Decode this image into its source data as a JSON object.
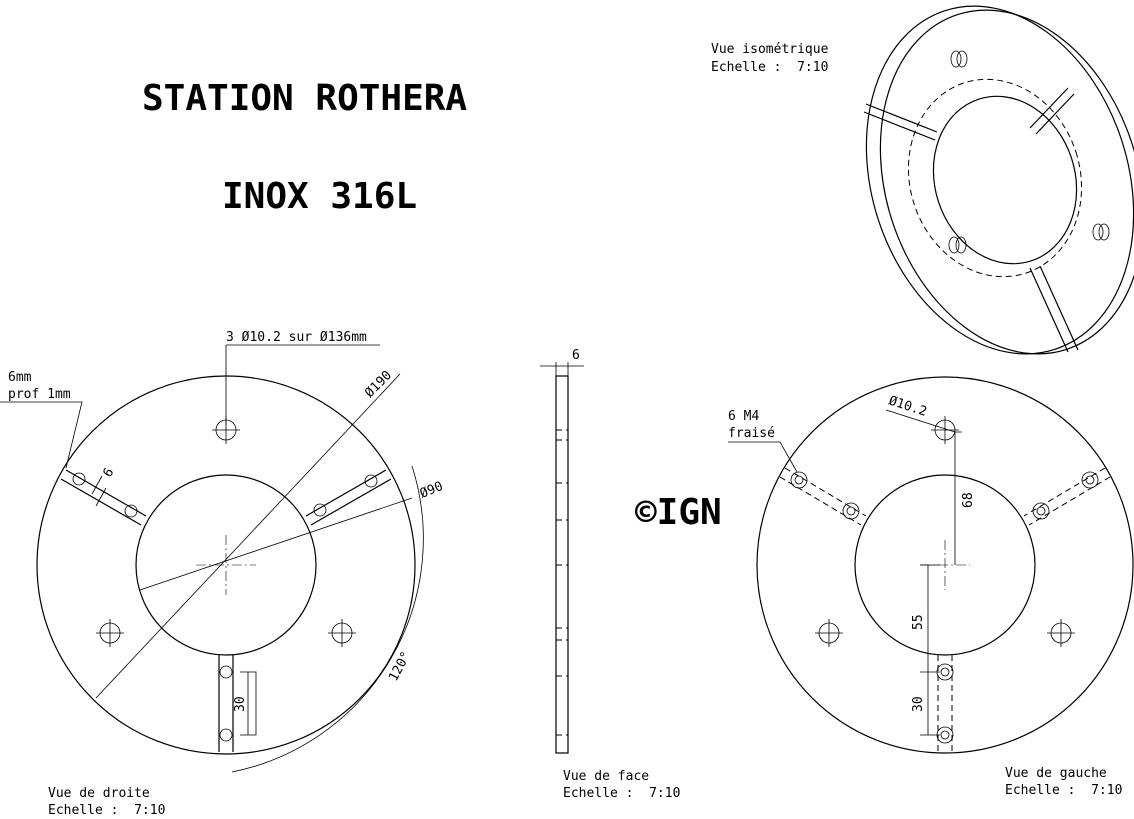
{
  "header": {
    "title": "STATION ROTHERA",
    "material": "INOX 316L",
    "copyright": "©IGN"
  },
  "views": [
    {
      "label": "Vue isométrique",
      "scale": "Echelle :  7:10"
    },
    {
      "label": "Vue de droite",
      "scale": "Echelle :  7:10",
      "annotations": [
        "3 Ø10.2 sur Ø136mm",
        "6mm",
        "prof 1mm",
        "6",
        "Ø190",
        "Ø90",
        "30",
        "120°"
      ]
    },
    {
      "label": "Vue de face",
      "scale": "Echelle :  7:10",
      "annotations": [
        "6"
      ]
    },
    {
      "label": "Vue de gauche",
      "scale": "Echelle :  7:10",
      "annotations": [
        "6 M4",
        "fraisé",
        "Ø10.2",
        "68",
        "55",
        "30"
      ]
    }
  ]
}
